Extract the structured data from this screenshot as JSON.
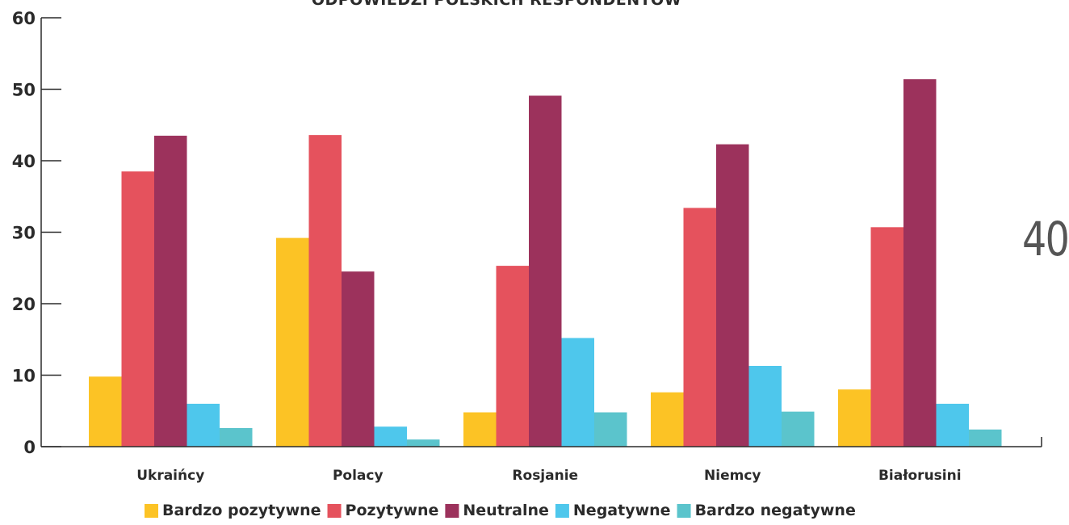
{
  "page_number": "40",
  "chart_data": {
    "type": "bar",
    "title": "ODPOWIEDZI POLSKICH RESPONDENTÓW",
    "categories": [
      "Ukraińcy",
      "Polacy",
      "Rosjanie",
      "Niemcy",
      "Białorusini"
    ],
    "series": [
      {
        "name": "Bardzo pozytywne",
        "color": "#fcc325",
        "values": [
          9.8,
          29.2,
          4.8,
          7.6,
          8.0
        ]
      },
      {
        "name": "Pozytywne",
        "color": "#e5525d",
        "values": [
          38.5,
          43.6,
          25.3,
          33.4,
          30.7
        ]
      },
      {
        "name": "Neutralne",
        "color": "#9c325c",
        "values": [
          43.5,
          24.5,
          49.1,
          42.3,
          51.4
        ]
      },
      {
        "name": "Negatywne",
        "color": "#4ec7ec",
        "values": [
          6.0,
          2.8,
          15.2,
          11.3,
          6.0
        ]
      },
      {
        "name": "Bardzo negatywne",
        "color": "#5bc4cc",
        "values": [
          2.6,
          1.0,
          4.8,
          4.9,
          2.4
        ]
      }
    ],
    "ylim": [
      0,
      60
    ],
    "yticks": [
      0,
      10,
      20,
      30,
      40,
      50,
      60
    ],
    "grid": false,
    "legend_position": "bottom"
  }
}
